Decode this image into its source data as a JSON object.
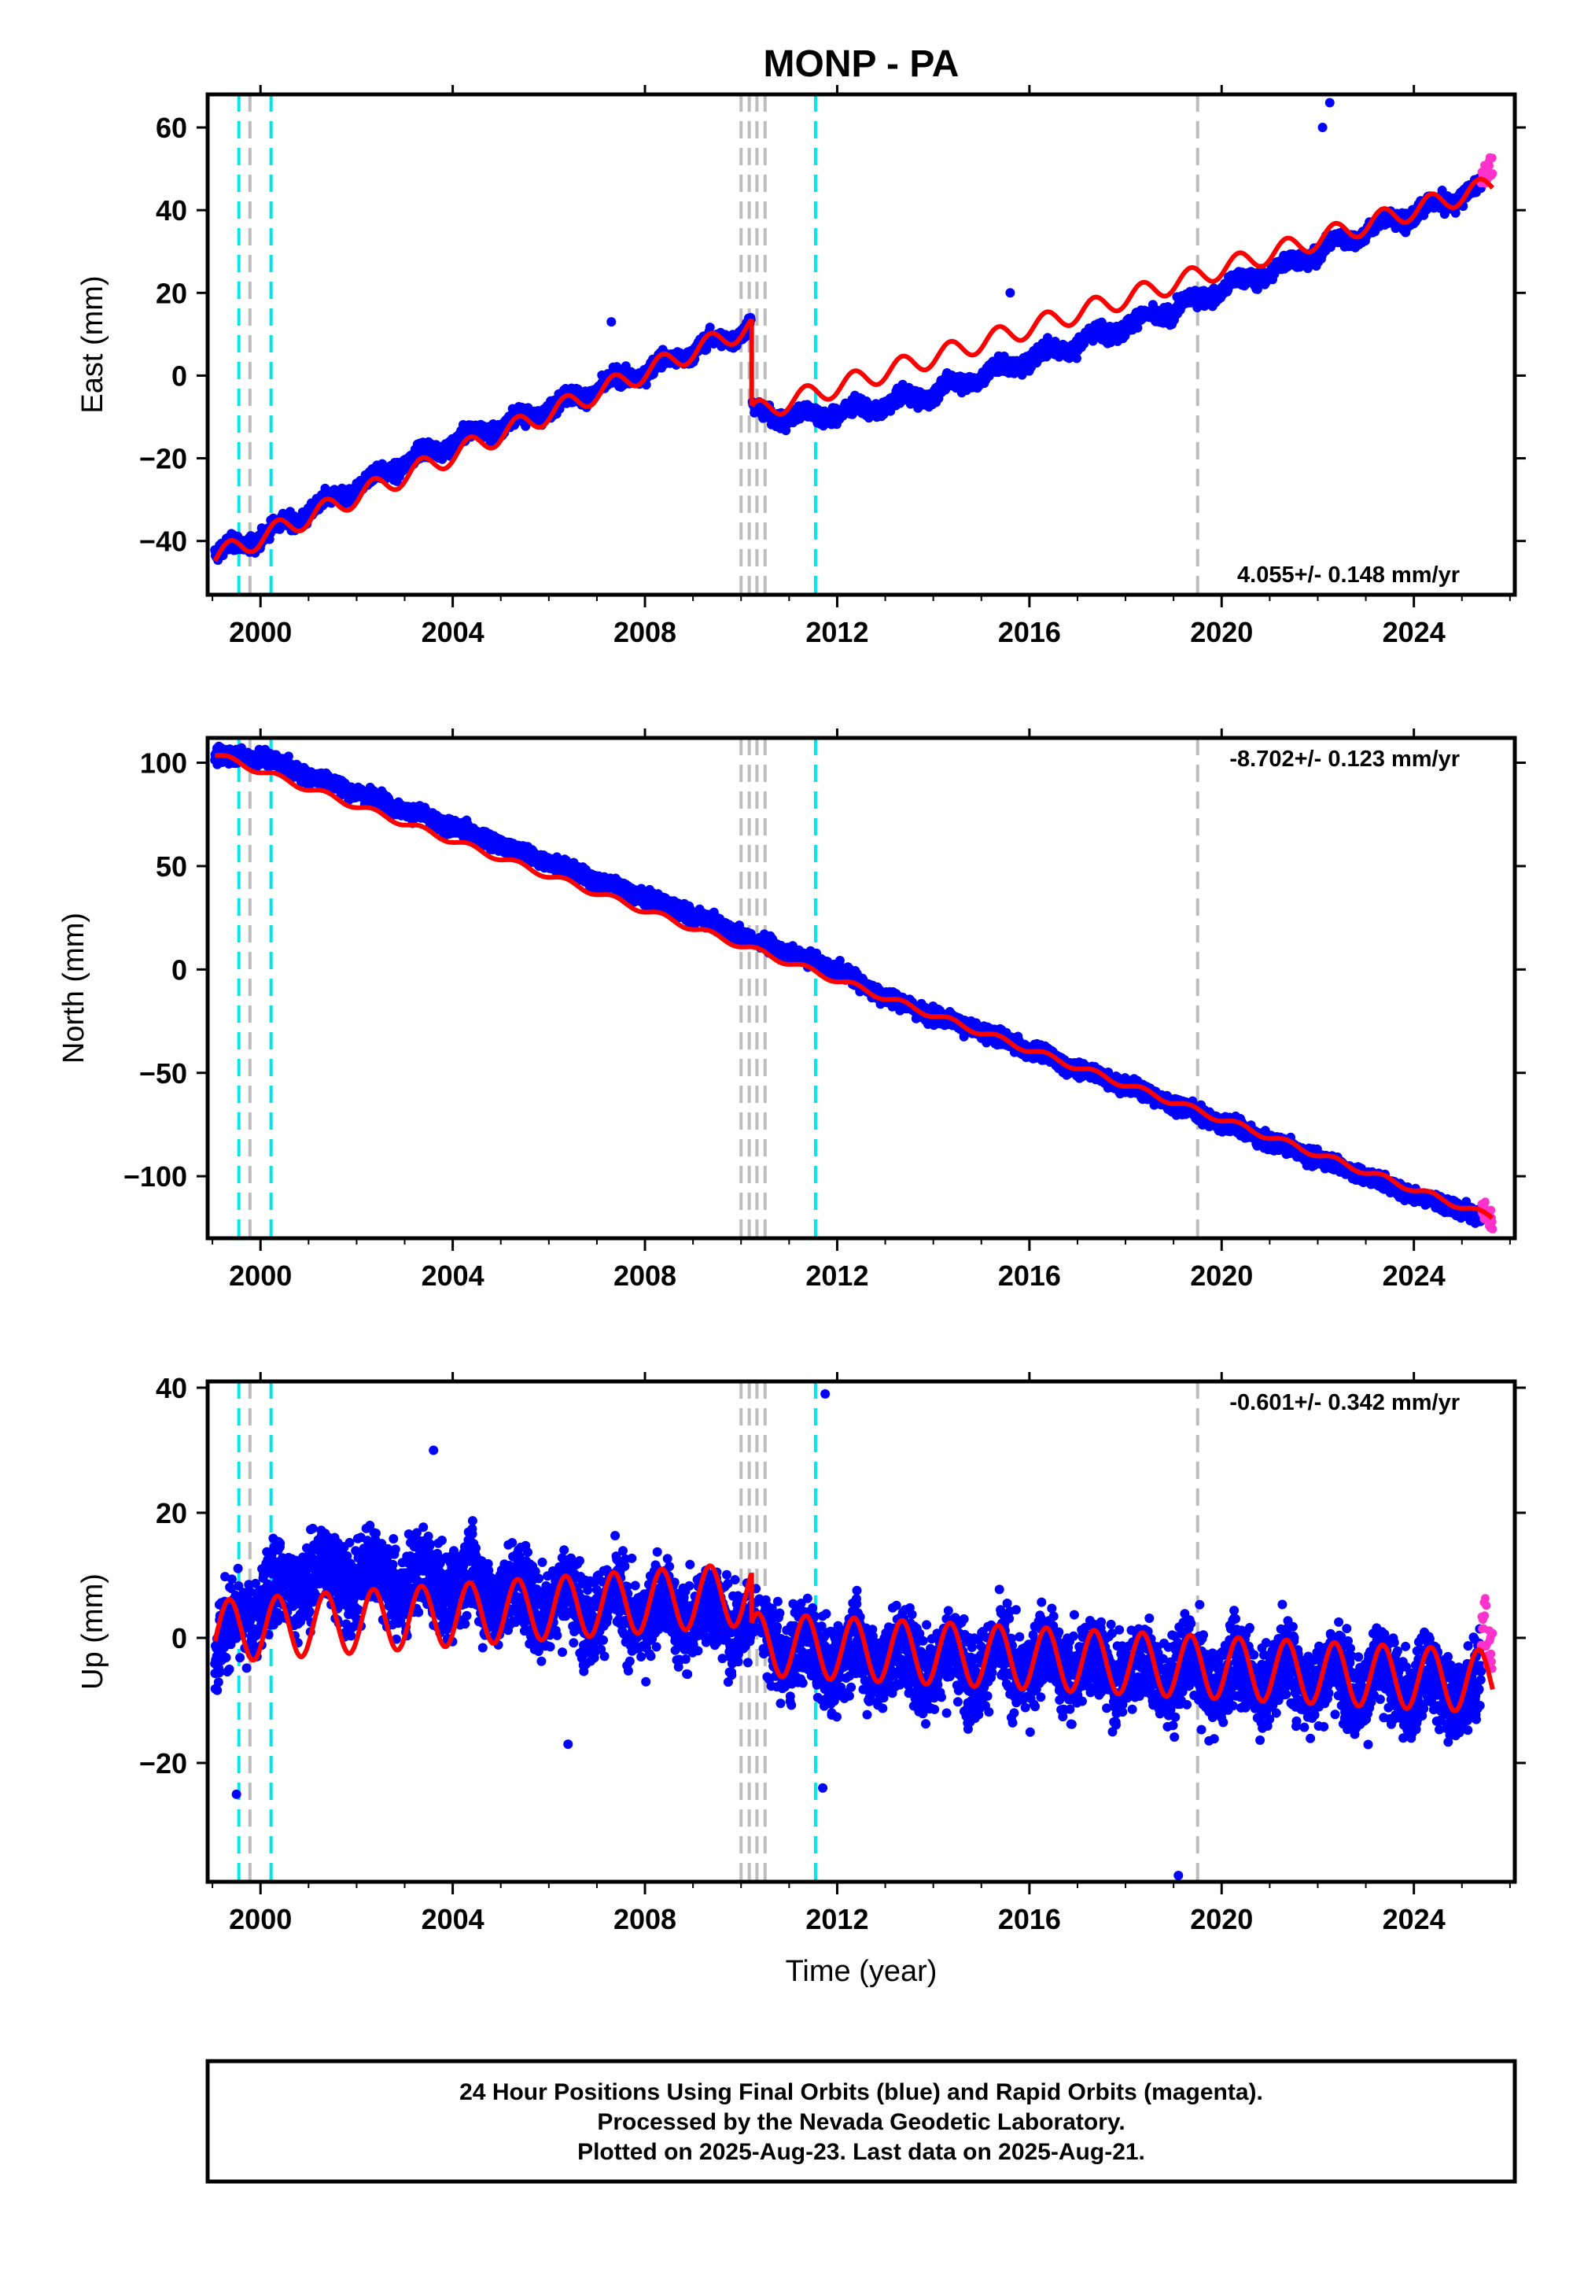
{
  "title": "MONP - PA",
  "caption": {
    "lines": [
      "24 Hour Positions Using Final Orbits (blue) and Rapid Orbits (magenta).",
      "Processed by the Nevada Geodetic Laboratory.",
      "Plotted on 2025-Aug-23. Last data on 2025-Aug-21."
    ]
  },
  "colors": {
    "final_orbits": "#0000ff",
    "rapid_orbits": "#ff33cc",
    "model": "#ff0000",
    "equipment_change_lines": "#00e5ee",
    "other_event_lines": "#bdbdbd"
  },
  "chart_data": [
    {
      "type": "scatter",
      "component": "east",
      "ylabel": "East (mm)",
      "xlabel": "",
      "xlim": [
        1998.9,
        2026.1
      ],
      "ylim": [
        -53,
        68
      ],
      "xticks": [
        2000,
        2004,
        2008,
        2012,
        2016,
        2020,
        2024
      ],
      "yticks": [
        -40,
        -20,
        0,
        20,
        40,
        60
      ],
      "ytick_labels": [
        "−40",
        "−20",
        "0",
        "20",
        "40",
        "60"
      ],
      "rate_label": "4.055+/- 0.148 mm/yr",
      "rate_label_position": "bottom-right",
      "data_span": [
        1999.05,
        2025.64
      ],
      "rapid_span": [
        2025.4,
        2025.64
      ],
      "series": [
        {
          "name": "Final Orbits",
          "x": [
            1999.1,
            2000.0,
            2001.0,
            2002.0,
            2003.0,
            2004.0,
            2005.0,
            2006.0,
            2007.0,
            2008.0,
            2009.0,
            2010.1,
            2010.25,
            2011.0,
            2012.0,
            2013.0,
            2014.0,
            2015.0,
            2016.0,
            2017.0,
            2018.0,
            2019.0,
            2020.0,
            2021.0,
            2022.0,
            2023.0,
            2024.0,
            2025.3
          ],
          "y": [
            -43,
            -39,
            -33,
            -27,
            -21,
            -16,
            -12,
            -8,
            -3,
            1,
            6,
            11,
            -9,
            -10,
            -9,
            -7,
            -4,
            0,
            4,
            8,
            12,
            16,
            21,
            25,
            30,
            35,
            39,
            45
          ]
        },
        {
          "name": "Rapid Orbits",
          "x": [
            2025.45,
            2025.64
          ],
          "y": [
            49,
            50
          ]
        }
      ],
      "outliers": [
        [
          2007.3,
          13
        ],
        [
          2022.1,
          60
        ],
        [
          2022.25,
          66
        ],
        [
          2015.6,
          20
        ]
      ],
      "model": {
        "segments": [
          {
            "x_start": 1999.05,
            "x_end": 2010.22,
            "y_start": -44,
            "y_end": 12
          },
          {
            "x_start": 2010.22,
            "x_end": 2025.64,
            "y_start": -9,
            "y_end": 46
          }
        ],
        "seasonal_amplitude": 2.5
      },
      "event_lines": {
        "cyan": [
          1999.55,
          2000.22,
          2011.55
        ],
        "gray": [
          1999.78,
          2010.0,
          2010.17,
          2010.33,
          2010.5,
          2019.5
        ]
      }
    },
    {
      "type": "scatter",
      "component": "north",
      "ylabel": "North (mm)",
      "xlabel": "",
      "xlim": [
        1998.9,
        2026.1
      ],
      "ylim": [
        -130,
        112
      ],
      "xticks": [
        2000,
        2004,
        2008,
        2012,
        2016,
        2020,
        2024
      ],
      "yticks": [
        -100,
        -50,
        0,
        50,
        100
      ],
      "ytick_labels": [
        "−100",
        "−50",
        "0",
        "50",
        "100"
      ],
      "rate_label": "-8.702+/- 0.123 mm/yr",
      "rate_label_position": "top-right",
      "data_span": [
        1999.05,
        2025.64
      ],
      "rapid_span": [
        2025.4,
        2025.64
      ],
      "series": [
        {
          "name": "Final Orbits",
          "x": [
            1999.1,
            2000.0,
            2001.0,
            2002.0,
            2003.0,
            2004.0,
            2005.0,
            2006.0,
            2007.0,
            2008.0,
            2009.0,
            2010.0,
            2011.0,
            2012.0,
            2013.0,
            2014.0,
            2015.0,
            2016.0,
            2017.0,
            2018.0,
            2019.0,
            2020.0,
            2021.0,
            2022.0,
            2023.0,
            2024.0,
            2025.5
          ],
          "y": [
            103,
            103,
            94,
            86,
            77,
            69,
            60,
            52,
            43,
            35,
            26,
            17,
            8,
            0,
            -13,
            -22,
            -30,
            -39,
            -48,
            -56,
            -65,
            -74,
            -83,
            -91,
            -100,
            -109,
            -120
          ]
        },
        {
          "name": "Rapid Orbits",
          "x": [
            2025.45,
            2025.64
          ],
          "y": [
            -117,
            -121
          ]
        }
      ],
      "model": {
        "segments": [
          {
            "x_start": 1999.05,
            "x_end": 2025.64,
            "y_start": 104,
            "y_end": -120
          }
        ],
        "seasonal_amplitude": 1.5
      },
      "event_lines": {
        "cyan": [
          1999.55,
          2000.22,
          2011.55
        ],
        "gray": [
          1999.78,
          2010.0,
          2010.17,
          2010.33,
          2010.5,
          2019.5
        ]
      }
    },
    {
      "type": "scatter",
      "component": "up",
      "ylabel": "Up (mm)",
      "xlabel": "Time (year)",
      "xlim": [
        1998.9,
        2026.1
      ],
      "ylim": [
        -39,
        41
      ],
      "xticks": [
        2000,
        2004,
        2008,
        2012,
        2016,
        2020,
        2024
      ],
      "yticks": [
        -20,
        0,
        20,
        40
      ],
      "ytick_labels": [
        "−20",
        "0",
        "20",
        "40"
      ],
      "rate_label": "-0.601+/- 0.342 mm/yr",
      "rate_label_position": "top-right",
      "data_span": [
        1999.05,
        2025.64
      ],
      "rapid_span": [
        2025.4,
        2025.64
      ],
      "series": [
        {
          "name": "Final Orbits",
          "x": [
            1999.1,
            2000.0,
            2001.0,
            2002.0,
            2003.0,
            2004.0,
            2005.0,
            2006.0,
            2007.0,
            2008.0,
            2009.0,
            2010.0,
            2011.0,
            2012.0,
            2013.0,
            2014.0,
            2015.0,
            2016.0,
            2017.0,
            2018.0,
            2019.0,
            2020.0,
            2021.0,
            2022.0,
            2023.0,
            2024.0,
            2025.5
          ],
          "y": [
            -2,
            6,
            10,
            10,
            9,
            9,
            7,
            6,
            5,
            4,
            4,
            3,
            -2,
            -3,
            -3,
            -4,
            -4,
            -4,
            -4,
            -5,
            -6,
            -6,
            -6,
            -6,
            -7,
            -8,
            -8
          ]
        },
        {
          "name": "Rapid Orbits",
          "x": [
            2025.45,
            2025.64
          ],
          "y": [
            2,
            -2
          ]
        }
      ],
      "outliers": [
        [
          2011.75,
          39
        ],
        [
          2019.1,
          -38
        ],
        [
          2011.7,
          -24
        ],
        [
          1999.5,
          -25
        ],
        [
          2003.6,
          30
        ],
        [
          2006.4,
          -17
        ]
      ],
      "model": {
        "segments": [
          {
            "x_start": 1999.05,
            "x_end": 2010.22,
            "y_start": 1,
            "y_end": 7
          },
          {
            "x_start": 2010.22,
            "x_end": 2025.64,
            "y_start": -1,
            "y_end": -7
          }
        ],
        "seasonal_amplitude": 5
      },
      "event_lines": {
        "cyan": [
          1999.55,
          2000.22,
          2011.55
        ],
        "gray": [
          1999.78,
          2010.0,
          2010.17,
          2010.33,
          2010.5,
          2019.5
        ]
      }
    }
  ]
}
